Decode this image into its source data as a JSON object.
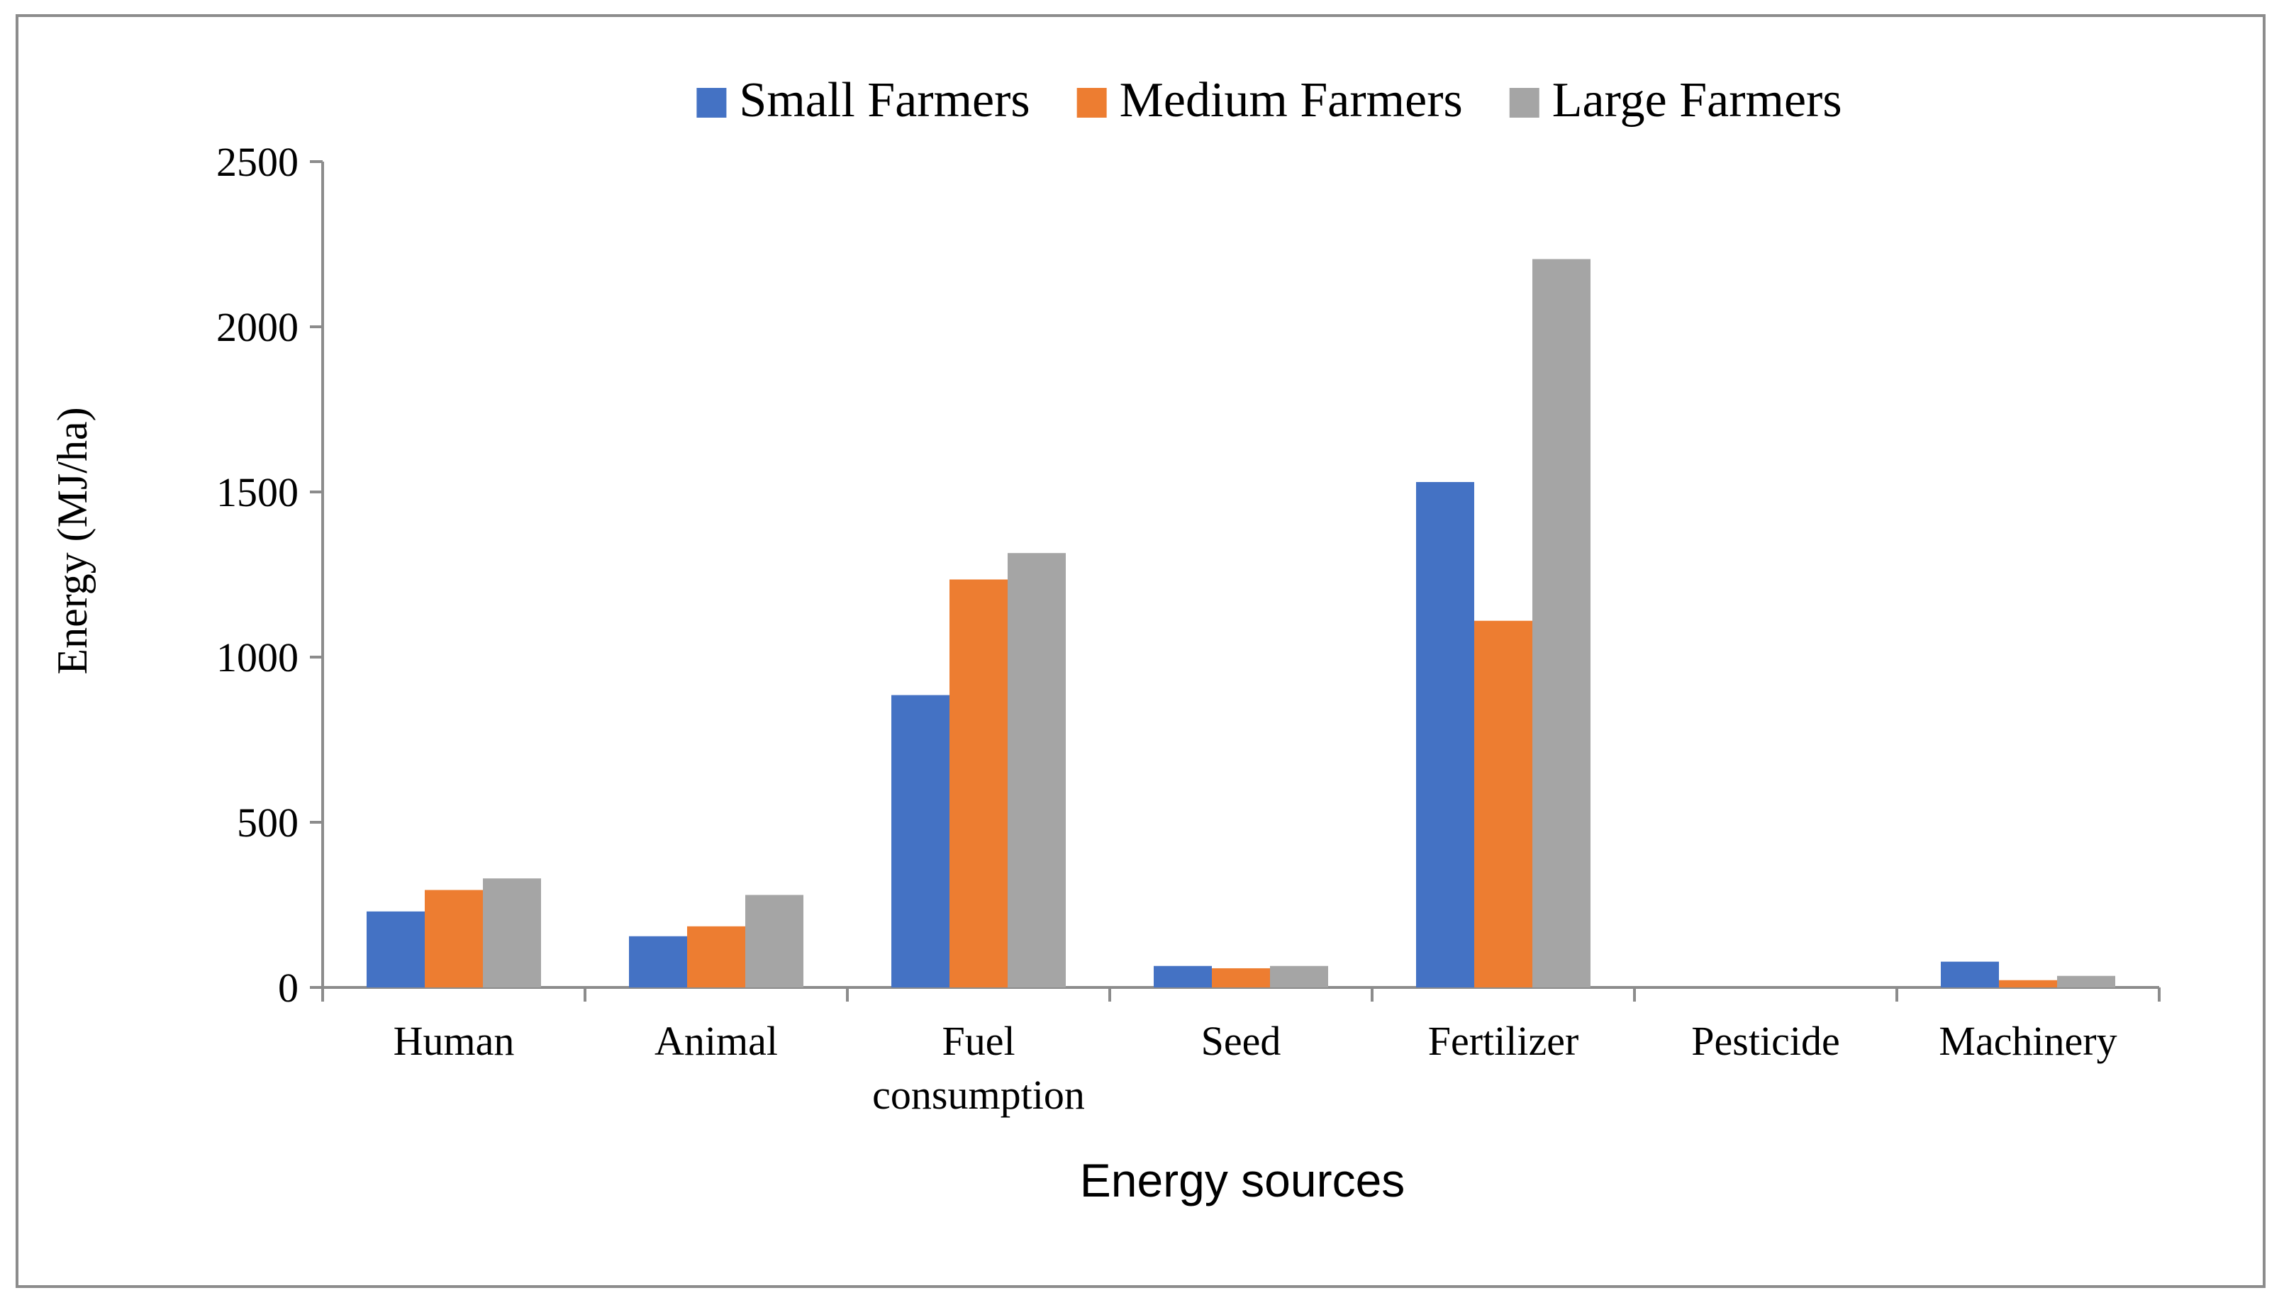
{
  "chart_data": {
    "type": "bar",
    "xlabel": "Energy sources",
    "ylabel": "Energy (MJ/ha)",
    "ylim": [
      0,
      2500
    ],
    "yticks": [
      "0",
      "500",
      "1000",
      "1500",
      "2000",
      "2500"
    ],
    "categories": [
      [
        "Human"
      ],
      [
        "Animal"
      ],
      [
        "Fuel",
        "consumption"
      ],
      [
        "Seed"
      ],
      [
        "Fertilizer"
      ],
      [
        "Pesticide"
      ],
      [
        "Machinery"
      ]
    ],
    "series": [
      {
        "name": "Small Farmers",
        "color": "#4472c4",
        "values": [
          230,
          155,
          885,
          65,
          1530,
          0,
          78
        ]
      },
      {
        "name": "Medium Farmers",
        "color": "#ed7d31",
        "values": [
          295,
          185,
          1235,
          58,
          1110,
          0,
          22
        ]
      },
      {
        "name": "Large Farmers",
        "color": "#a5a5a5",
        "values": [
          330,
          280,
          1315,
          65,
          2205,
          0,
          35
        ]
      }
    ],
    "legend_position": "top",
    "grid": false
  }
}
